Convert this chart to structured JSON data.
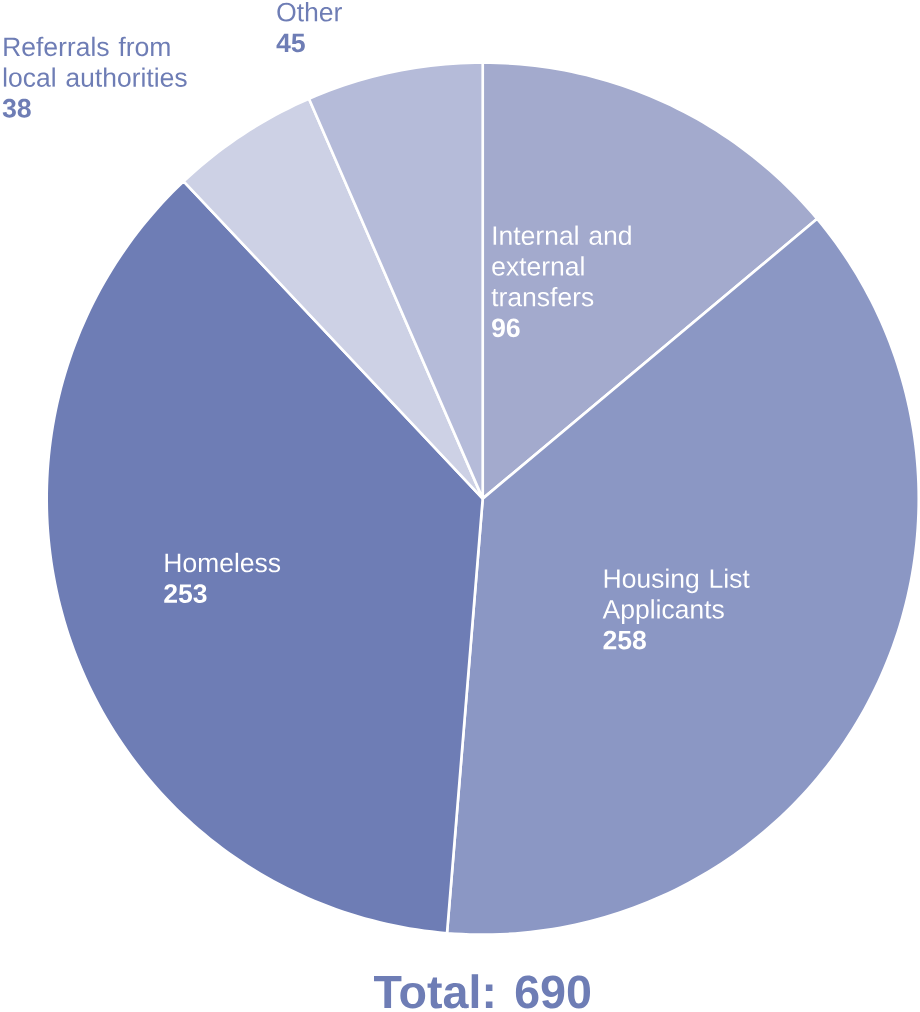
{
  "chart_data": {
    "type": "pie",
    "title": "Total: 690",
    "categories": [
      "Internal and external transfers",
      "Housing List Applicants",
      "Homeless",
      "Referrals from local authorities",
      "Other"
    ],
    "values": [
      96,
      258,
      253,
      38,
      45
    ],
    "colors": [
      "#a3aacd",
      "#8b97c4",
      "#6e7db5",
      "#cdd1e5",
      "#b5bbd9"
    ],
    "data_labels": true
  }
}
